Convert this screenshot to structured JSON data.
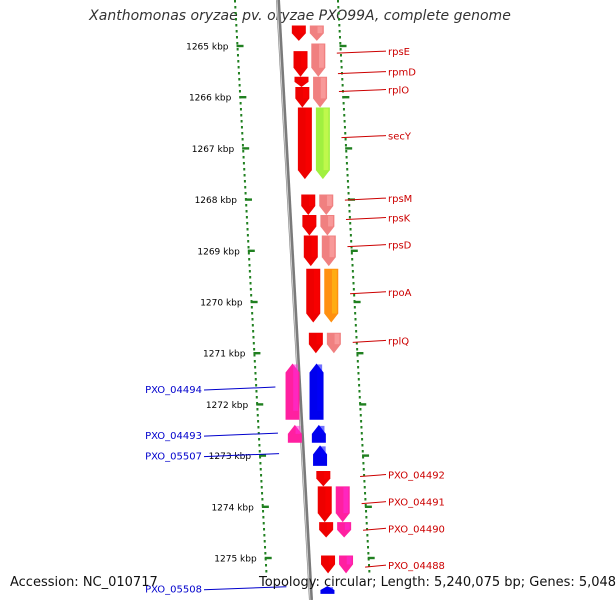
{
  "title": "Xanthomonas oryzae pv. oryzae PXO99A, complete genome",
  "footer": {
    "accession": "Accession: NC_010717",
    "topology": "Topology: circular; Length: 5,240,075 bp; Genes: 5,048"
  },
  "colors": {
    "ruler": "#208020",
    "backbone": "#7a7a7a",
    "red_gene": "#ee0000",
    "pink_gene": "#f08080",
    "lime_gene": "#a0f040",
    "orange_gene": "#ff9010",
    "magenta_gene": "#ff20a0",
    "blue_gene": "#0000ee",
    "right_label": "#cc0000",
    "left_label": "#0000cc"
  },
  "ruler_ticks": [
    "1265 kbp",
    "1266 kbp",
    "1267 kbp",
    "1268 kbp",
    "1269 kbp",
    "1270 kbp",
    "1271 kbp",
    "1272 kbp",
    "1273 kbp",
    "1274 kbp",
    "1275 kbp"
  ],
  "right_labels": [
    "rpsE",
    "rpmD",
    "rplO",
    "secY",
    "rpsM",
    "rpsK",
    "rpsD",
    "rpoA",
    "rplQ",
    "PXO_04492",
    "PXO_04491",
    "PXO_04490",
    "PXO_04488"
  ],
  "left_labels": [
    "PXO_04494",
    "PXO_04493",
    "PXO_05507",
    "PXO_05508"
  ],
  "genes": [
    {
      "strand": "left",
      "color": "red_gene",
      "start_kbp": 1264.6,
      "end_kbp": 1264.9
    },
    {
      "strand": "right",
      "color": "pink_gene",
      "start_kbp": 1264.6,
      "end_kbp": 1264.9
    },
    {
      "strand": "left",
      "color": "red_gene",
      "start_kbp": 1265.1,
      "end_kbp": 1265.6
    },
    {
      "strand": "right",
      "color": "pink_gene",
      "start_kbp": 1264.95,
      "end_kbp": 1265.6
    },
    {
      "strand": "left",
      "color": "red_gene",
      "start_kbp": 1265.6,
      "end_kbp": 1265.8
    },
    {
      "strand": "left",
      "color": "red_gene",
      "start_kbp": 1265.8,
      "end_kbp": 1266.2
    },
    {
      "strand": "right",
      "color": "pink_gene",
      "start_kbp": 1265.6,
      "end_kbp": 1266.2
    },
    {
      "strand": "left",
      "color": "red_gene",
      "start_kbp": 1266.2,
      "end_kbp": 1267.6
    },
    {
      "strand": "right",
      "color": "lime_gene",
      "start_kbp": 1266.2,
      "end_kbp": 1267.6
    },
    {
      "strand": "left",
      "color": "red_gene",
      "start_kbp": 1267.9,
      "end_kbp": 1268.3
    },
    {
      "strand": "right",
      "color": "pink_gene",
      "start_kbp": 1267.9,
      "end_kbp": 1268.3
    },
    {
      "strand": "left",
      "color": "red_gene",
      "start_kbp": 1268.3,
      "end_kbp": 1268.7
    },
    {
      "strand": "right",
      "color": "pink_gene",
      "start_kbp": 1268.3,
      "end_kbp": 1268.7
    },
    {
      "strand": "left",
      "color": "red_gene",
      "start_kbp": 1268.7,
      "end_kbp": 1269.3
    },
    {
      "strand": "right",
      "color": "pink_gene",
      "start_kbp": 1268.7,
      "end_kbp": 1269.3
    },
    {
      "strand": "left",
      "color": "red_gene",
      "start_kbp": 1269.35,
      "end_kbp": 1270.4
    },
    {
      "strand": "right",
      "color": "orange_gene",
      "start_kbp": 1269.35,
      "end_kbp": 1270.4
    },
    {
      "strand": "left",
      "color": "red_gene",
      "start_kbp": 1270.6,
      "end_kbp": 1271.0
    },
    {
      "strand": "right",
      "color": "pink_gene",
      "start_kbp": 1270.6,
      "end_kbp": 1271.0
    },
    {
      "strand": "minus-left",
      "color": "magenta_gene",
      "start_kbp": 1271.2,
      "end_kbp": 1272.3
    },
    {
      "strand": "minus-right",
      "color": "blue_gene",
      "start_kbp": 1271.2,
      "end_kbp": 1272.3
    },
    {
      "strand": "minus-left",
      "color": "magenta_gene",
      "start_kbp": 1272.4,
      "end_kbp": 1272.75
    },
    {
      "strand": "minus-right",
      "color": "blue_gene",
      "start_kbp": 1272.4,
      "end_kbp": 1272.75
    },
    {
      "strand": "minus-right",
      "color": "blue_gene",
      "start_kbp": 1272.8,
      "end_kbp": 1273.2
    },
    {
      "strand": "left",
      "color": "red_gene",
      "start_kbp": 1273.3,
      "end_kbp": 1273.6
    },
    {
      "strand": "left",
      "color": "red_gene",
      "start_kbp": 1273.6,
      "end_kbp": 1274.3
    },
    {
      "strand": "right",
      "color": "magenta_gene",
      "start_kbp": 1273.6,
      "end_kbp": 1274.3
    },
    {
      "strand": "left",
      "color": "red_gene",
      "start_kbp": 1274.3,
      "end_kbp": 1274.6
    },
    {
      "strand": "right",
      "color": "magenta_gene",
      "start_kbp": 1274.3,
      "end_kbp": 1274.6
    },
    {
      "strand": "left",
      "color": "red_gene",
      "start_kbp": 1274.95,
      "end_kbp": 1275.3
    },
    {
      "strand": "right",
      "color": "magenta_gene",
      "start_kbp": 1274.95,
      "end_kbp": 1275.3
    },
    {
      "strand": "minus-right",
      "color": "blue_gene",
      "start_kbp": 1275.55,
      "end_kbp": 1275.7
    }
  ]
}
